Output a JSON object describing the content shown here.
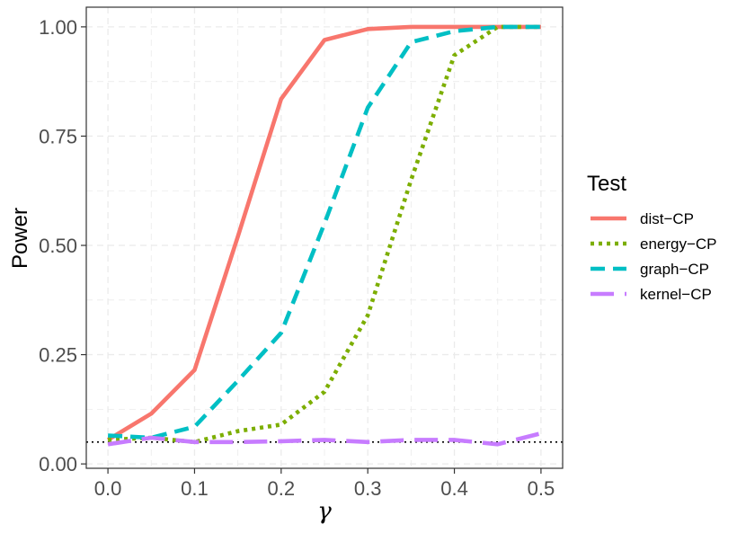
{
  "chart_data": {
    "type": "line",
    "xlabel": "γ",
    "ylabel": "Power",
    "xlim": [
      -0.025,
      0.525
    ],
    "ylim": [
      -0.01,
      1.045
    ],
    "x_ticks": [
      0.0,
      0.1,
      0.2,
      0.3,
      0.4,
      0.5
    ],
    "x_tick_labels": [
      "0.0",
      "0.1",
      "0.2",
      "0.3",
      "0.4",
      "0.5"
    ],
    "y_ticks": [
      0.0,
      0.25,
      0.5,
      0.75,
      1.0
    ],
    "y_tick_labels": [
      "0.00",
      "0.25",
      "0.50",
      "0.75",
      "1.00"
    ],
    "grid": true,
    "legend_title": "Test",
    "legend_position": "right",
    "reference_line": {
      "y": 0.05,
      "style": "dotted",
      "color": "#000000"
    },
    "x": [
      0.0,
      0.05,
      0.1,
      0.15,
      0.2,
      0.25,
      0.3,
      0.35,
      0.4,
      0.45,
      0.5
    ],
    "series": [
      {
        "name": "dist−CP",
        "color": "#F8766D",
        "dash": "solid",
        "values": [
          0.055,
          0.115,
          0.215,
          0.52,
          0.835,
          0.97,
          0.995,
          1.0,
          1.0,
          1.0,
          1.0
        ]
      },
      {
        "name": "energy−CP",
        "color": "#7CAE00",
        "dash": "dotted",
        "values": [
          0.055,
          0.06,
          0.05,
          0.075,
          0.09,
          0.165,
          0.34,
          0.65,
          0.935,
          1.0,
          1.0
        ]
      },
      {
        "name": "graph−CP",
        "color": "#00BFC4",
        "dash": "dashed",
        "values": [
          0.065,
          0.06,
          0.085,
          0.19,
          0.3,
          0.55,
          0.815,
          0.965,
          0.99,
          1.0,
          1.0
        ]
      },
      {
        "name": "kernel−CP",
        "color": "#C77CFF",
        "dash": "longdash",
        "values": [
          0.045,
          0.06,
          0.05,
          0.05,
          0.052,
          0.055,
          0.05,
          0.055,
          0.055,
          0.045,
          0.07
        ]
      }
    ]
  }
}
